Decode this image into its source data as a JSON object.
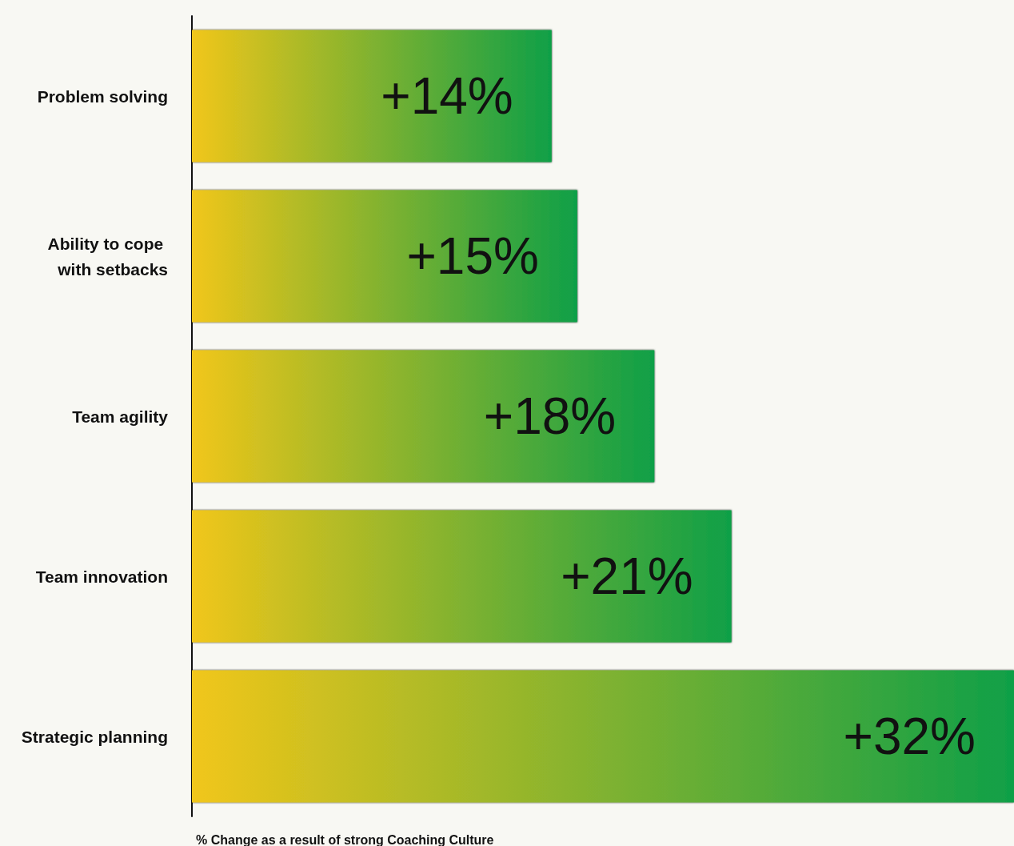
{
  "chart_data": {
    "type": "bar",
    "orientation": "horizontal",
    "categories": [
      "Problem solving",
      "Ability to cope with setbacks",
      "Team agility",
      "Team innovation",
      "Strategic planning"
    ],
    "values": [
      14,
      15,
      18,
      21,
      32
    ],
    "value_labels": [
      "+14%",
      "+15%",
      "+18%",
      "+21%",
      "+32%"
    ],
    "color": "#80b230",
    "xlabel": "% Change as a result of strong Coaching Culture",
    "tick_labels": "y",
    "grid": false
  }
}
